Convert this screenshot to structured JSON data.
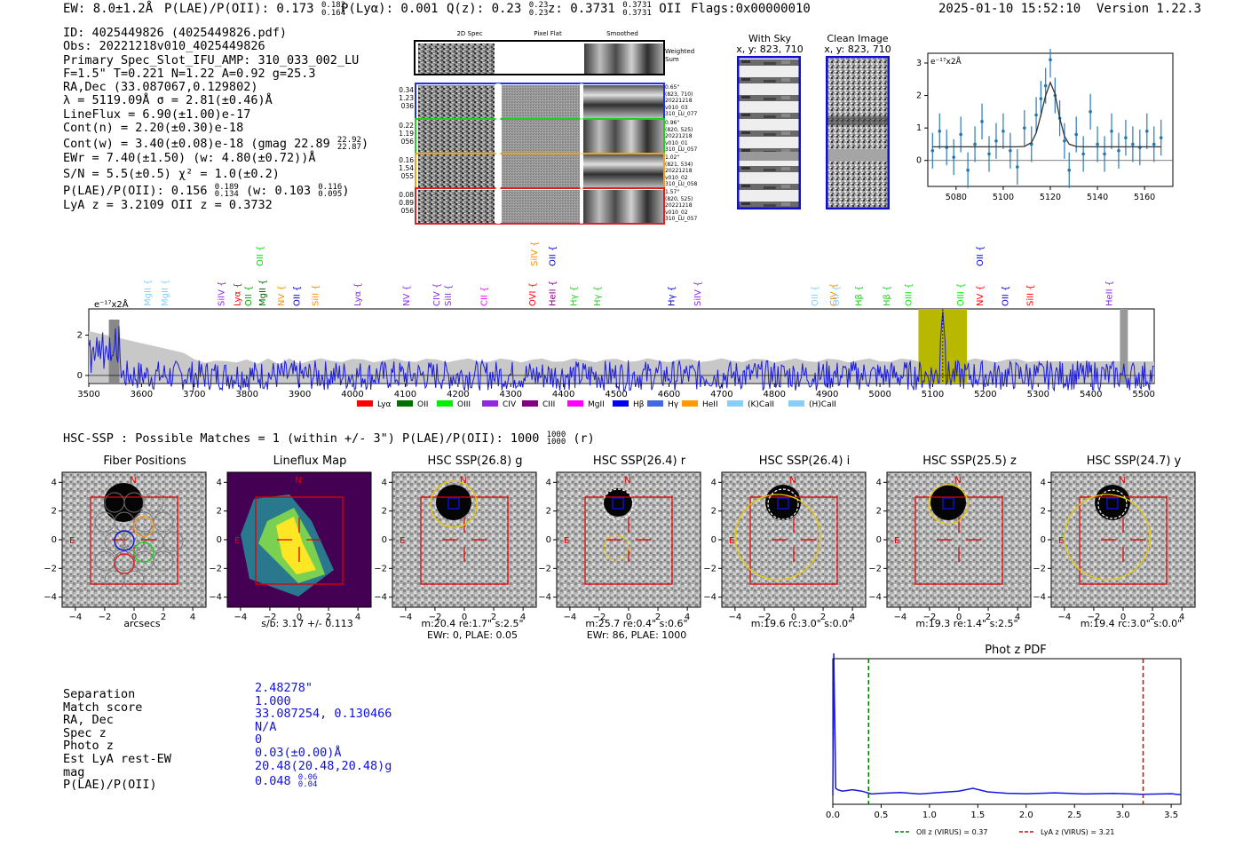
{
  "header": {
    "ew": "EW: 8.0±1.2Å",
    "plae": "P(LAE)/P(OII): 0.173",
    "plae_hi": "0.182",
    "plae_lo": "0.164",
    "plya": "P(Lyα): 0.001",
    "qz": "Q(z): 0.23",
    "qz_hi": "0.23",
    "qz_lo": "0.23",
    "z": "z: 0.3731",
    "z_hi": "0.3731",
    "z_lo": "0.3731",
    "z_line": "OII",
    "flags": "Flags:0x00000010",
    "datetime": "2025-01-10 15:52:10",
    "version": "Version 1.22.3"
  },
  "info": {
    "lines": [
      "ID: 4025449826 (4025449826.pdf)",
      "Obs: 20221218v010_4025449826",
      "Primary Spec_Slot_IFU_AMP: 310_033_002_LU",
      "F=1.5\"  T=0.221  N=1.22  A=0.92  g=25.3",
      "RA,Dec (33.087067,0.129802)",
      "λ = 5119.09Å  σ = 2.81(±0.46)Å",
      "LineFlux = 6.90(±1.00)e-17",
      "Cont(n) = 2.20(±0.30)e-18"
    ],
    "contw": "Cont(w) = 3.40(±0.08)e-18 (gmag 22.89",
    "contw_hi": "22.92",
    "contw_lo": "22.87",
    "contw_tail": ")",
    "ewr": "EWr = 7.40(±1.50) (w: 4.80(±0.72))Å",
    "sn": "S/N = 5.5(±0.5)  χ² = 1.0(±0.2)",
    "plae2": "P(LAE)/P(OII): 0.156",
    "plae2_hi": "0.189",
    "plae2_lo": "0.134",
    "plae2_w": "(w: 0.103",
    "plae2_w_hi": "0.116",
    "plae2_w_lo": "0.095",
    "plae2_tail": ")",
    "lya_z": "LyA z = 3.2109   OII z = 0.3732"
  },
  "spec2d": {
    "col_titles": [
      "2D Spec",
      "Pixel Flat",
      "Smoothed"
    ],
    "weighted_label": "Weighted Sum",
    "rows": [
      {
        "left": [
          "0.34",
          "1.23",
          "036"
        ],
        "right": [
          "0.65\"",
          "(823, 710)",
          "20221218",
          "v010_03",
          "310_LU_077"
        ],
        "color": "#2030e0"
      },
      {
        "left": [
          "0.22",
          "1.19",
          "056"
        ],
        "right": [
          "0.96\"",
          "(820, 525)",
          "20221218",
          "v010_01",
          "310_LU_057"
        ],
        "color": "#22cc22"
      },
      {
        "left": [
          "0.16",
          "1.54",
          "055"
        ],
        "right": [
          "1.02\"",
          "(821, 534)",
          "20221218",
          "v010_02",
          "310_LU_058"
        ],
        "color": "#f0a020"
      },
      {
        "left": [
          "0.08",
          "0.89",
          "056"
        ],
        "right": [
          "1.57\"",
          "(820, 525)",
          "20221218",
          "v010_02",
          "310_LU_057"
        ],
        "color": "#e02020"
      }
    ]
  },
  "sky": {
    "with_sky_title": "With Sky",
    "with_sky_xy": "x, y: 823, 710",
    "clean_title": "Clean Image",
    "clean_xy": "x, y: 823, 710"
  },
  "zoom_chart": {
    "ylabel": "e⁻¹⁷x2Å"
  },
  "spectrum": {
    "ylabel": "e⁻¹⁷x2Å",
    "labels": [
      {
        "name": "MgII",
        "w": 3617,
        "color": "#87cefa",
        "row": 1
      },
      {
        "name": "MgII",
        "w": 3650,
        "color": "#87cefa",
        "row": 1
      },
      {
        "name": "SiIV",
        "w": 3757,
        "color": "#8a2be2",
        "row": 1
      },
      {
        "name": "Lyα",
        "w": 3787,
        "color": "#ff0000",
        "row": 1
      },
      {
        "name": "OII",
        "w": 3808,
        "color": "#00aa00",
        "row": 1
      },
      {
        "name": "OII",
        "w": 3830,
        "color": "#00dd00",
        "row": 2
      },
      {
        "name": "MgII",
        "w": 3835,
        "color": "#006400",
        "row": 1
      },
      {
        "name": "NV",
        "w": 3870,
        "color": "#ff8c00",
        "row": 1
      },
      {
        "name": "OII",
        "w": 3900,
        "color": "#0000cc",
        "row": 1
      },
      {
        "name": "SiII",
        "w": 3935,
        "color": "#ff8c00",
        "row": 1
      },
      {
        "name": "Lyα",
        "w": 4015,
        "color": "#8a2be2",
        "row": 1
      },
      {
        "name": "NV",
        "w": 4108,
        "color": "#8a2be2",
        "row": 1
      },
      {
        "name": "CIV",
        "w": 4165,
        "color": "#8a2be2",
        "row": 1
      },
      {
        "name": "SiII",
        "w": 4187,
        "color": "#8a2be2",
        "row": 1
      },
      {
        "name": "CII",
        "w": 4255,
        "color": "#ff00ff",
        "row": 1
      },
      {
        "name": "OVI",
        "w": 4347,
        "color": "#ff0000",
        "row": 1
      },
      {
        "name": "SiIV",
        "w": 4350,
        "color": "#ff8c00",
        "row": 2
      },
      {
        "name": "OII",
        "w": 4385,
        "color": "#0000cc",
        "row": 2
      },
      {
        "name": "HeII",
        "w": 4385,
        "color": "#8b008b",
        "row": 1
      },
      {
        "name": "Hγ",
        "w": 4425,
        "color": "#22cc22",
        "row": 1
      },
      {
        "name": "Hγ",
        "w": 4470,
        "color": "#22cc22",
        "row": 1
      },
      {
        "name": "Hγ",
        "w": 4610,
        "color": "#0000cc",
        "row": 1
      },
      {
        "name": "SiIV",
        "w": 4660,
        "color": "#8a2be2",
        "row": 1
      },
      {
        "name": "OII",
        "w": 4882,
        "color": "#87cefa",
        "row": 1
      },
      {
        "name": "CIV",
        "w": 4917,
        "color": "#ff8c00",
        "row": 1
      },
      {
        "name": "OII",
        "w": 4922,
        "color": "#87cefa",
        "row": 1
      },
      {
        "name": "Hβ",
        "w": 4965,
        "color": "#22cc22",
        "row": 1
      },
      {
        "name": "Hβ",
        "w": 5018,
        "color": "#22cc22",
        "row": 1
      },
      {
        "name": "OIII",
        "w": 5060,
        "color": "#00ee00",
        "row": 1
      },
      {
        "name": "OIII",
        "w": 5158,
        "color": "#00ee00",
        "row": 1
      },
      {
        "name": "NV",
        "w": 5195,
        "color": "#ff0000",
        "row": 1
      },
      {
        "name": "OII",
        "w": 5195,
        "color": "#0000cc",
        "row": 2
      },
      {
        "name": "OII",
        "w": 5243,
        "color": "#0000cc",
        "row": 1
      },
      {
        "name": "SiII",
        "w": 5290,
        "color": "#ff0000",
        "row": 1
      },
      {
        "name": "HeII",
        "w": 5440,
        "color": "#8a2be2",
        "row": 1
      }
    ],
    "legend": [
      {
        "name": "Lyα",
        "color": "#ff0000"
      },
      {
        "name": "OII",
        "color": "#007000"
      },
      {
        "name": "OIII",
        "color": "#00ee00"
      },
      {
        "name": "CIV",
        "color": "#8a2be2"
      },
      {
        "name": "CIII",
        "color": "#800080"
      },
      {
        "name": "MgII",
        "color": "#ff00ff"
      },
      {
        "name": "Hβ",
        "color": "#0000ee"
      },
      {
        "name": "Hγ",
        "color": "#4169e1"
      },
      {
        "name": "HeII",
        "color": "#ff9900"
      },
      {
        "name": "(K)CaII",
        "color": "#87cefa"
      },
      {
        "name": "(H)CaII",
        "color": "#87cefa"
      }
    ]
  },
  "hsc": {
    "header": "HSC-SSP : Possible Matches = 1 (within +/- 3\")  P(LAE)/P(OII): 1000",
    "header_hi": "1000",
    "header_lo": "1000",
    "header_tail": "(r)",
    "panels": [
      {
        "title": "Fiber Positions",
        "l1": "arcsecs",
        "l2": ""
      },
      {
        "title": "Lineflux Map",
        "l1": "s/b: 3.17 +/- 0.113",
        "l2": ""
      },
      {
        "title": "HSC SSP(26.8) g",
        "l1": "m:20.4  re:1.7\"  s:2.5\"",
        "l2": "EWr: 0, PLAE: 0.05"
      },
      {
        "title": "HSC SSP(26.4) r",
        "l1": "m:25.7  re:0.4\"  s:0.6\"",
        "l2": "EWr: 86, PLAE: 1000"
      },
      {
        "title": "HSC SSP(26.4) i",
        "l1": "m:19.6 rc:3.0\"  s:0.0\"",
        "l2": ""
      },
      {
        "title": "HSC SSP(25.5) z",
        "l1": "m:19.3  re:1.4\"  s:2.5\"",
        "l2": ""
      },
      {
        "title": "HSC SSP(24.7) y",
        "l1": "m:19.4 rc:3.0\"  s:0.0\"",
        "l2": ""
      }
    ],
    "compass_n": "N",
    "compass_e": "E"
  },
  "match": {
    "labels": [
      "Separation",
      "Match score",
      "RA, Dec",
      "Spec z",
      "Photo z",
      "Est LyA rest-EW",
      "mag",
      "P(LAE)/P(OII)"
    ],
    "values": [
      "2.48278\"",
      "1.000",
      "33.087254, 0.130466",
      "N/A",
      "0",
      "0.03(±0.00)Å",
      "20.48(20.48,20.48)g",
      "0.048"
    ],
    "plae_hi": "0.06",
    "plae_lo": "0.04"
  },
  "chart_data": [
    {
      "type": "line",
      "title": "",
      "xlabel": "",
      "ylabel": "e-17 x2Å",
      "xlim": [
        5068,
        5172
      ],
      "ylim": [
        -0.8,
        3.3
      ],
      "x_ticks": [
        5080,
        5100,
        5120,
        5140,
        5160
      ],
      "y_ticks": [
        0,
        1,
        2,
        3
      ],
      "x": [
        5070,
        5073,
        5076,
        5079,
        5082,
        5085,
        5088,
        5091,
        5094,
        5097,
        5100,
        5103,
        5106,
        5109,
        5112,
        5114,
        5116,
        5118,
        5120,
        5122,
        5124,
        5126,
        5128,
        5131,
        5134,
        5137,
        5140,
        5143,
        5146,
        5149,
        5152,
        5155,
        5158,
        5161,
        5164,
        5167
      ],
      "series": [
        {
          "name": "data",
          "values": [
            0.3,
            0.9,
            0.4,
            0.1,
            0.8,
            -0.3,
            0.5,
            1.2,
            0.2,
            0.6,
            0.9,
            0.3,
            -0.2,
            1.0,
            0.5,
            1.4,
            1.9,
            2.3,
            3.1,
            2.0,
            1.3,
            0.6,
            -0.3,
            0.8,
            0.2,
            1.5,
            0.5,
            0.2,
            0.9,
            0.3,
            0.7,
            0.5,
            0.4,
            0.9,
            0.5,
            0.7
          ]
        },
        {
          "name": "fit",
          "values": [
            0.42,
            0.42,
            0.42,
            0.42,
            0.42,
            0.42,
            0.42,
            0.42,
            0.42,
            0.42,
            0.42,
            0.42,
            0.42,
            0.43,
            0.55,
            0.85,
            1.4,
            2.0,
            2.4,
            2.05,
            1.3,
            0.75,
            0.5,
            0.43,
            0.42,
            0.42,
            0.42,
            0.42,
            0.42,
            0.42,
            0.42,
            0.42,
            0.42,
            0.42,
            0.42,
            0.42
          ]
        }
      ]
    },
    {
      "type": "line",
      "title": "",
      "xlabel": "",
      "ylabel": "e-17 x2Å",
      "xlim": [
        3500,
        5520
      ],
      "ylim": [
        -0.4,
        3.3
      ],
      "x_ticks": [
        3500,
        3600,
        3700,
        3800,
        3900,
        4000,
        4100,
        4200,
        4300,
        4400,
        4500,
        4600,
        4700,
        4800,
        4900,
        5000,
        5100,
        5200,
        5300,
        5400,
        5500
      ],
      "y_ticks": [
        0,
        2
      ],
      "highlight_band": [
        5073,
        5165
      ],
      "line_marker": 5119.09,
      "series": [
        {
          "name": "spectrum",
          "values": []
        }
      ]
    },
    {
      "type": "line",
      "title": "Phot z PDF",
      "xlabel": "",
      "ylabel": "",
      "xlim": [
        0.0,
        3.6
      ],
      "x_ticks": [
        0.0,
        0.5,
        1.0,
        1.5,
        2.0,
        2.5,
        3.0,
        3.5
      ],
      "vlines": [
        {
          "name": "OII z (VIRUS) = 0.37",
          "x": 0.37,
          "color": "#008000"
        },
        {
          "name": "LyA z (VIRUS) = 3.21",
          "x": 3.21,
          "color": "#e00000"
        }
      ],
      "x": [
        0.0,
        0.01,
        0.03,
        0.05,
        0.1,
        0.2,
        0.3,
        0.4,
        0.5,
        0.7,
        0.9,
        1.1,
        1.3,
        1.45,
        1.6,
        1.8,
        2.0,
        2.3,
        2.6,
        2.9,
        3.2,
        3.5,
        3.6
      ],
      "series": [
        {
          "name": "pdf",
          "values": [
            0.0,
            1.0,
            0.05,
            0.04,
            0.03,
            0.04,
            0.03,
            0.01,
            0.015,
            0.02,
            0.01,
            0.02,
            0.03,
            0.05,
            0.025,
            0.015,
            0.012,
            0.018,
            0.01,
            0.014,
            0.008,
            0.012,
            0.005
          ]
        }
      ]
    }
  ]
}
